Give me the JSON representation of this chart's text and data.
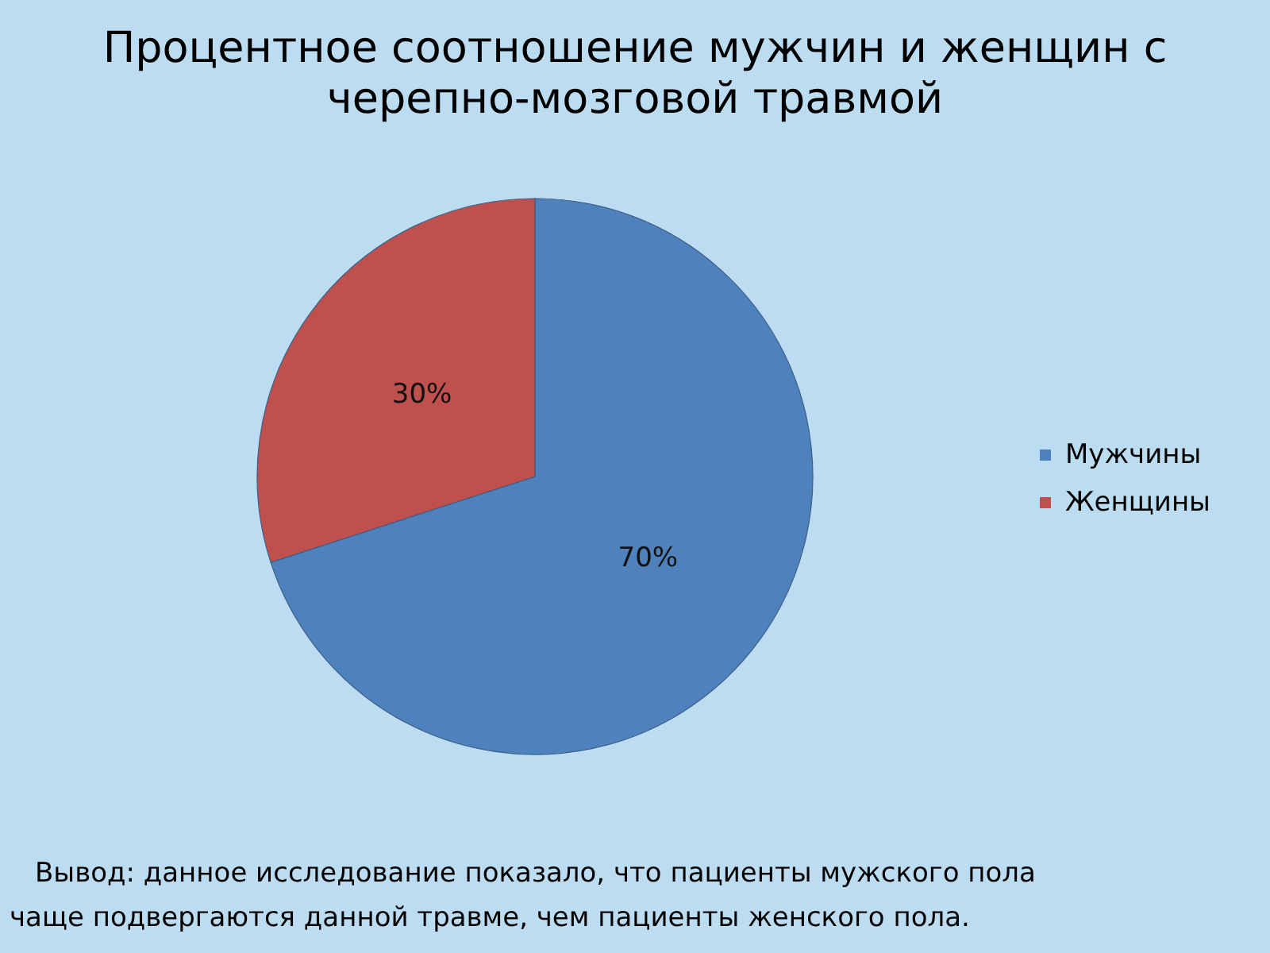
{
  "chart_data": {
    "type": "pie",
    "title": "Процентное соотношение мужчин и женщин с черепно-мозговой травмой",
    "categories": [
      "Мужчины",
      "Женщины"
    ],
    "values": [
      70,
      30
    ],
    "colors": [
      "#4f81bd",
      "#c0504d"
    ],
    "value_labels": [
      "70%",
      "30%"
    ],
    "legend": "right",
    "annotations": [
      "Вывод: данное исследование показало, что пациенты мужского пола чаще подвергаются данной травме, чем пациенты женского пола."
    ]
  }
}
